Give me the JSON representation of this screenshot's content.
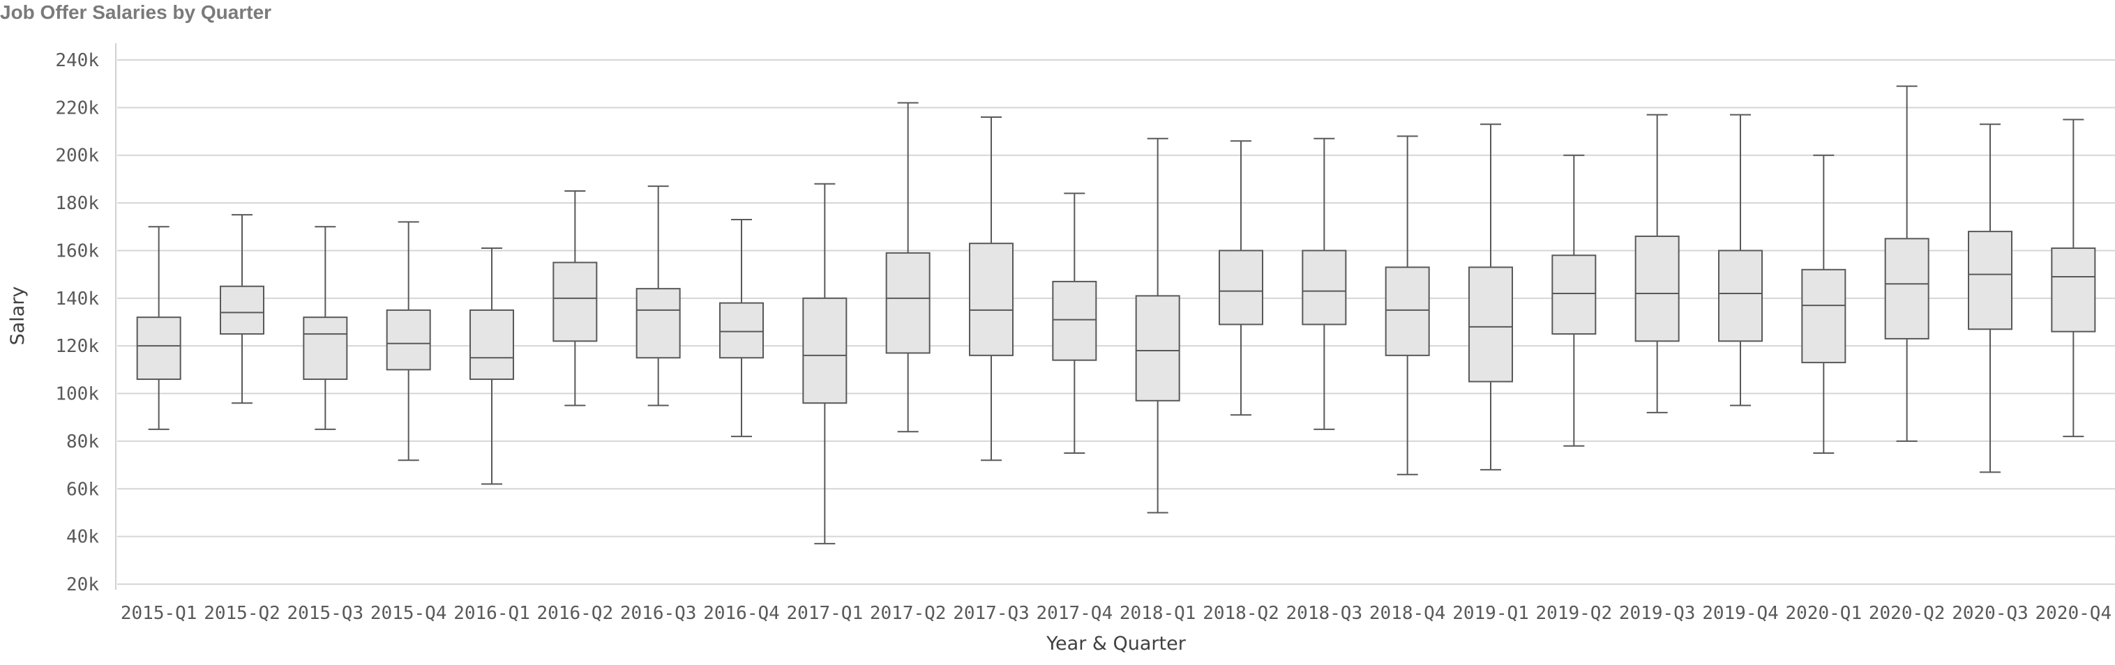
{
  "chart_data": {
    "type": "boxplot",
    "title": "Job Offer Salaries by Quarter",
    "xlabel": "Year & Quarter",
    "ylabel": "Salary",
    "ylim": [
      20000,
      240000
    ],
    "y_ticks": [
      20000,
      40000,
      60000,
      80000,
      100000,
      120000,
      140000,
      160000,
      180000,
      200000,
      220000,
      240000
    ],
    "y_tick_labels": [
      "20k",
      "40k",
      "60k",
      "80k",
      "100k",
      "120k",
      "140k",
      "160k",
      "180k",
      "200k",
      "220k",
      "240k"
    ],
    "grid": true,
    "box_fill": "#e5e5e5",
    "line_color": "#595959",
    "categories": [
      "2015-Q1",
      "2015-Q2",
      "2015-Q3",
      "2015-Q4",
      "2016-Q1",
      "2016-Q2",
      "2016-Q3",
      "2016-Q4",
      "2017-Q1",
      "2017-Q2",
      "2017-Q3",
      "2017-Q4",
      "2018-Q1",
      "2018-Q2",
      "2018-Q3",
      "2018-Q4",
      "2019-Q1",
      "2019-Q2",
      "2019-Q3",
      "2019-Q4",
      "2020-Q1",
      "2020-Q2",
      "2020-Q3",
      "2020-Q4"
    ],
    "boxes": [
      {
        "min": 85000,
        "q1": 106000,
        "median": 120000,
        "q3": 132000,
        "max": 170000
      },
      {
        "min": 96000,
        "q1": 125000,
        "median": 134000,
        "q3": 145000,
        "max": 175000
      },
      {
        "min": 85000,
        "q1": 106000,
        "median": 125000,
        "q3": 132000,
        "max": 170000
      },
      {
        "min": 72000,
        "q1": 110000,
        "median": 121000,
        "q3": 135000,
        "max": 172000
      },
      {
        "min": 62000,
        "q1": 106000,
        "median": 115000,
        "q3": 135000,
        "max": 161000
      },
      {
        "min": 95000,
        "q1": 122000,
        "median": 140000,
        "q3": 155000,
        "max": 185000
      },
      {
        "min": 95000,
        "q1": 115000,
        "median": 135000,
        "q3": 144000,
        "max": 187000
      },
      {
        "min": 82000,
        "q1": 115000,
        "median": 126000,
        "q3": 138000,
        "max": 173000
      },
      {
        "min": 37000,
        "q1": 96000,
        "median": 116000,
        "q3": 140000,
        "max": 188000
      },
      {
        "min": 84000,
        "q1": 117000,
        "median": 140000,
        "q3": 159000,
        "max": 222000
      },
      {
        "min": 72000,
        "q1": 116000,
        "median": 135000,
        "q3": 163000,
        "max": 216000
      },
      {
        "min": 75000,
        "q1": 114000,
        "median": 131000,
        "q3": 147000,
        "max": 184000
      },
      {
        "min": 50000,
        "q1": 97000,
        "median": 118000,
        "q3": 141000,
        "max": 207000
      },
      {
        "min": 91000,
        "q1": 129000,
        "median": 143000,
        "q3": 160000,
        "max": 206000
      },
      {
        "min": 85000,
        "q1": 129000,
        "median": 143000,
        "q3": 160000,
        "max": 207000
      },
      {
        "min": 66000,
        "q1": 116000,
        "median": 135000,
        "q3": 153000,
        "max": 208000
      },
      {
        "min": 68000,
        "q1": 105000,
        "median": 128000,
        "q3": 153000,
        "max": 213000
      },
      {
        "min": 78000,
        "q1": 125000,
        "median": 142000,
        "q3": 158000,
        "max": 200000
      },
      {
        "min": 92000,
        "q1": 122000,
        "median": 142000,
        "q3": 166000,
        "max": 217000
      },
      {
        "min": 95000,
        "q1": 122000,
        "median": 142000,
        "q3": 160000,
        "max": 217000
      },
      {
        "min": 75000,
        "q1": 113000,
        "median": 137000,
        "q3": 152000,
        "max": 200000
      },
      {
        "min": 80000,
        "q1": 123000,
        "median": 146000,
        "q3": 165000,
        "max": 229000
      },
      {
        "min": 67000,
        "q1": 127000,
        "median": 150000,
        "q3": 168000,
        "max": 213000
      },
      {
        "min": 82000,
        "q1": 126000,
        "median": 149000,
        "q3": 161000,
        "max": 215000
      }
    ]
  }
}
